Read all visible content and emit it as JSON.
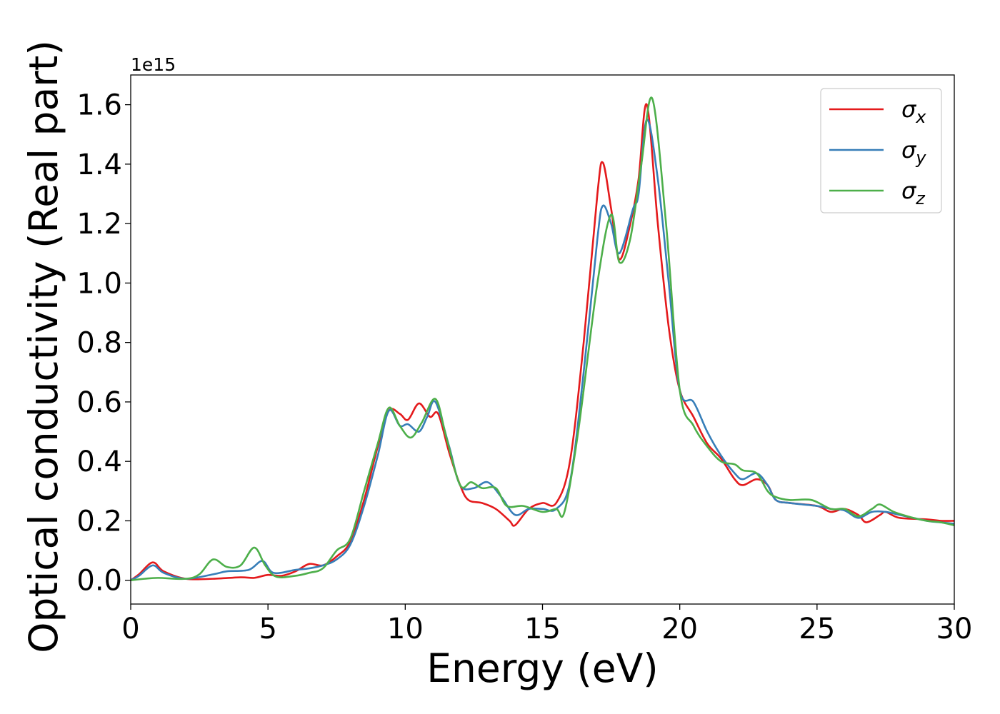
{
  "chart_data": {
    "type": "line",
    "title": "",
    "xlabel": "Energy (eV)",
    "ylabel": "Optical conductivity (Real part)",
    "y_offset_label": "1e15",
    "xlim": [
      0,
      30
    ],
    "ylim": [
      -0.08,
      1.7
    ],
    "x_ticks": [
      0,
      5,
      10,
      15,
      20,
      25,
      30
    ],
    "x_tick_labels": [
      "0",
      "5",
      "10",
      "15",
      "20",
      "25",
      "30"
    ],
    "y_ticks": [
      0.0,
      0.2,
      0.4,
      0.6,
      0.8,
      1.0,
      1.2,
      1.4,
      1.6
    ],
    "y_tick_labels": [
      "0.0",
      "0.2",
      "0.4",
      "0.6",
      "0.8",
      "1.0",
      "1.2",
      "1.4",
      "1.6"
    ],
    "grid": false,
    "legend_position": "top-right",
    "series": [
      {
        "name": "σx",
        "legend_main": "σ",
        "legend_sub": "x",
        "color": "#e41a1c",
        "points": [
          [
            0,
            0.0
          ],
          [
            0.3,
            0.02
          ],
          [
            0.8,
            0.06
          ],
          [
            1.2,
            0.03
          ],
          [
            2,
            0.005
          ],
          [
            3,
            0.005
          ],
          [
            4,
            0.01
          ],
          [
            4.5,
            0.008
          ],
          [
            5,
            0.018
          ],
          [
            5.5,
            0.015
          ],
          [
            6,
            0.03
          ],
          [
            6.5,
            0.055
          ],
          [
            7,
            0.05
          ],
          [
            7.5,
            0.08
          ],
          [
            8,
            0.13
          ],
          [
            8.5,
            0.27
          ],
          [
            9,
            0.45
          ],
          [
            9.4,
            0.57
          ],
          [
            9.8,
            0.56
          ],
          [
            10.1,
            0.54
          ],
          [
            10.5,
            0.595
          ],
          [
            10.9,
            0.55
          ],
          [
            11.2,
            0.56
          ],
          [
            11.6,
            0.43
          ],
          [
            12,
            0.32
          ],
          [
            12.3,
            0.27
          ],
          [
            12.8,
            0.26
          ],
          [
            13.3,
            0.24
          ],
          [
            13.8,
            0.2
          ],
          [
            14,
            0.185
          ],
          [
            14.5,
            0.24
          ],
          [
            15,
            0.26
          ],
          [
            15.5,
            0.26
          ],
          [
            16,
            0.4
          ],
          [
            16.5,
            0.8
          ],
          [
            17,
            1.3
          ],
          [
            17.2,
            1.405
          ],
          [
            17.5,
            1.25
          ],
          [
            17.8,
            1.08
          ],
          [
            18.2,
            1.2
          ],
          [
            18.5,
            1.35
          ],
          [
            18.8,
            1.6
          ],
          [
            19.2,
            1.2
          ],
          [
            19.6,
            0.85
          ],
          [
            20,
            0.64
          ],
          [
            20.5,
            0.55
          ],
          [
            21,
            0.46
          ],
          [
            21.5,
            0.41
          ],
          [
            22,
            0.34
          ],
          [
            22.3,
            0.32
          ],
          [
            22.8,
            0.34
          ],
          [
            23.2,
            0.32
          ],
          [
            23.5,
            0.27
          ],
          [
            24,
            0.26
          ],
          [
            25,
            0.25
          ],
          [
            25.5,
            0.23
          ],
          [
            26,
            0.24
          ],
          [
            26.5,
            0.22
          ],
          [
            26.8,
            0.195
          ],
          [
            27.3,
            0.22
          ],
          [
            27.5,
            0.23
          ],
          [
            28,
            0.21
          ],
          [
            29,
            0.205
          ],
          [
            29.5,
            0.2
          ],
          [
            30,
            0.2
          ]
        ]
      },
      {
        "name": "σy",
        "legend_main": "σ",
        "legend_sub": "y",
        "color": "#377eb8",
        "points": [
          [
            0,
            0.0
          ],
          [
            0.3,
            0.015
          ],
          [
            0.8,
            0.05
          ],
          [
            1.2,
            0.025
          ],
          [
            2,
            0.005
          ],
          [
            3,
            0.02
          ],
          [
            3.5,
            0.03
          ],
          [
            4.3,
            0.035
          ],
          [
            4.8,
            0.065
          ],
          [
            5.2,
            0.025
          ],
          [
            6,
            0.035
          ],
          [
            6.5,
            0.04
          ],
          [
            7,
            0.05
          ],
          [
            7.5,
            0.07
          ],
          [
            8,
            0.12
          ],
          [
            8.5,
            0.25
          ],
          [
            9,
            0.42
          ],
          [
            9.4,
            0.57
          ],
          [
            9.8,
            0.52
          ],
          [
            10.1,
            0.525
          ],
          [
            10.5,
            0.5
          ],
          [
            10.8,
            0.55
          ],
          [
            11.1,
            0.6
          ],
          [
            11.6,
            0.45
          ],
          [
            12,
            0.32
          ],
          [
            12.5,
            0.31
          ],
          [
            13,
            0.33
          ],
          [
            13.5,
            0.28
          ],
          [
            14,
            0.22
          ],
          [
            14.5,
            0.24
          ],
          [
            15,
            0.24
          ],
          [
            15.5,
            0.24
          ],
          [
            16,
            0.33
          ],
          [
            16.5,
            0.7
          ],
          [
            17,
            1.15
          ],
          [
            17.2,
            1.26
          ],
          [
            17.5,
            1.2
          ],
          [
            17.8,
            1.1
          ],
          [
            18.3,
            1.25
          ],
          [
            18.5,
            1.3
          ],
          [
            18.8,
            1.55
          ],
          [
            19.2,
            1.35
          ],
          [
            19.6,
            1.0
          ],
          [
            20,
            0.64
          ],
          [
            20.5,
            0.6
          ],
          [
            21,
            0.5
          ],
          [
            21.5,
            0.42
          ],
          [
            22,
            0.36
          ],
          [
            22.3,
            0.34
          ],
          [
            22.8,
            0.36
          ],
          [
            23.2,
            0.32
          ],
          [
            23.5,
            0.27
          ],
          [
            24,
            0.26
          ],
          [
            25,
            0.25
          ],
          [
            25.5,
            0.24
          ],
          [
            26,
            0.235
          ],
          [
            26.5,
            0.21
          ],
          [
            27,
            0.23
          ],
          [
            27.5,
            0.23
          ],
          [
            28,
            0.22
          ],
          [
            29,
            0.2
          ],
          [
            29.5,
            0.195
          ],
          [
            30,
            0.19
          ]
        ]
      },
      {
        "name": "σz",
        "legend_main": "σ",
        "legend_sub": "z",
        "color": "#4daf4a",
        "points": [
          [
            0,
            0.0
          ],
          [
            0.5,
            0.005
          ],
          [
            1,
            0.008
          ],
          [
            2,
            0.005
          ],
          [
            2.5,
            0.02
          ],
          [
            3,
            0.07
          ],
          [
            3.5,
            0.045
          ],
          [
            4,
            0.05
          ],
          [
            4.5,
            0.11
          ],
          [
            4.9,
            0.05
          ],
          [
            5.3,
            0.012
          ],
          [
            6,
            0.015
          ],
          [
            6.5,
            0.025
          ],
          [
            7,
            0.04
          ],
          [
            7.5,
            0.1
          ],
          [
            8,
            0.14
          ],
          [
            8.5,
            0.3
          ],
          [
            9,
            0.46
          ],
          [
            9.4,
            0.58
          ],
          [
            9.8,
            0.52
          ],
          [
            10.2,
            0.48
          ],
          [
            10.6,
            0.53
          ],
          [
            11.1,
            0.61
          ],
          [
            11.5,
            0.48
          ],
          [
            12,
            0.32
          ],
          [
            12.4,
            0.33
          ],
          [
            12.8,
            0.31
          ],
          [
            13.3,
            0.31
          ],
          [
            13.7,
            0.25
          ],
          [
            14.3,
            0.25
          ],
          [
            15,
            0.23
          ],
          [
            15.5,
            0.24
          ],
          [
            15.8,
            0.23
          ],
          [
            16.3,
            0.5
          ],
          [
            17,
            1.0
          ],
          [
            17.5,
            1.23
          ],
          [
            17.8,
            1.07
          ],
          [
            18.2,
            1.15
          ],
          [
            18.6,
            1.4
          ],
          [
            19,
            1.62
          ],
          [
            19.5,
            1.2
          ],
          [
            20,
            0.64
          ],
          [
            20.5,
            0.52
          ],
          [
            21,
            0.45
          ],
          [
            21.5,
            0.4
          ],
          [
            22,
            0.39
          ],
          [
            22.3,
            0.37
          ],
          [
            22.8,
            0.36
          ],
          [
            23.2,
            0.3
          ],
          [
            23.5,
            0.28
          ],
          [
            24,
            0.27
          ],
          [
            24.8,
            0.27
          ],
          [
            25.5,
            0.24
          ],
          [
            26,
            0.24
          ],
          [
            26.5,
            0.215
          ],
          [
            27,
            0.24
          ],
          [
            27.3,
            0.255
          ],
          [
            27.8,
            0.23
          ],
          [
            28.5,
            0.21
          ],
          [
            29,
            0.2
          ],
          [
            29.5,
            0.195
          ],
          [
            30,
            0.185
          ]
        ]
      }
    ]
  }
}
